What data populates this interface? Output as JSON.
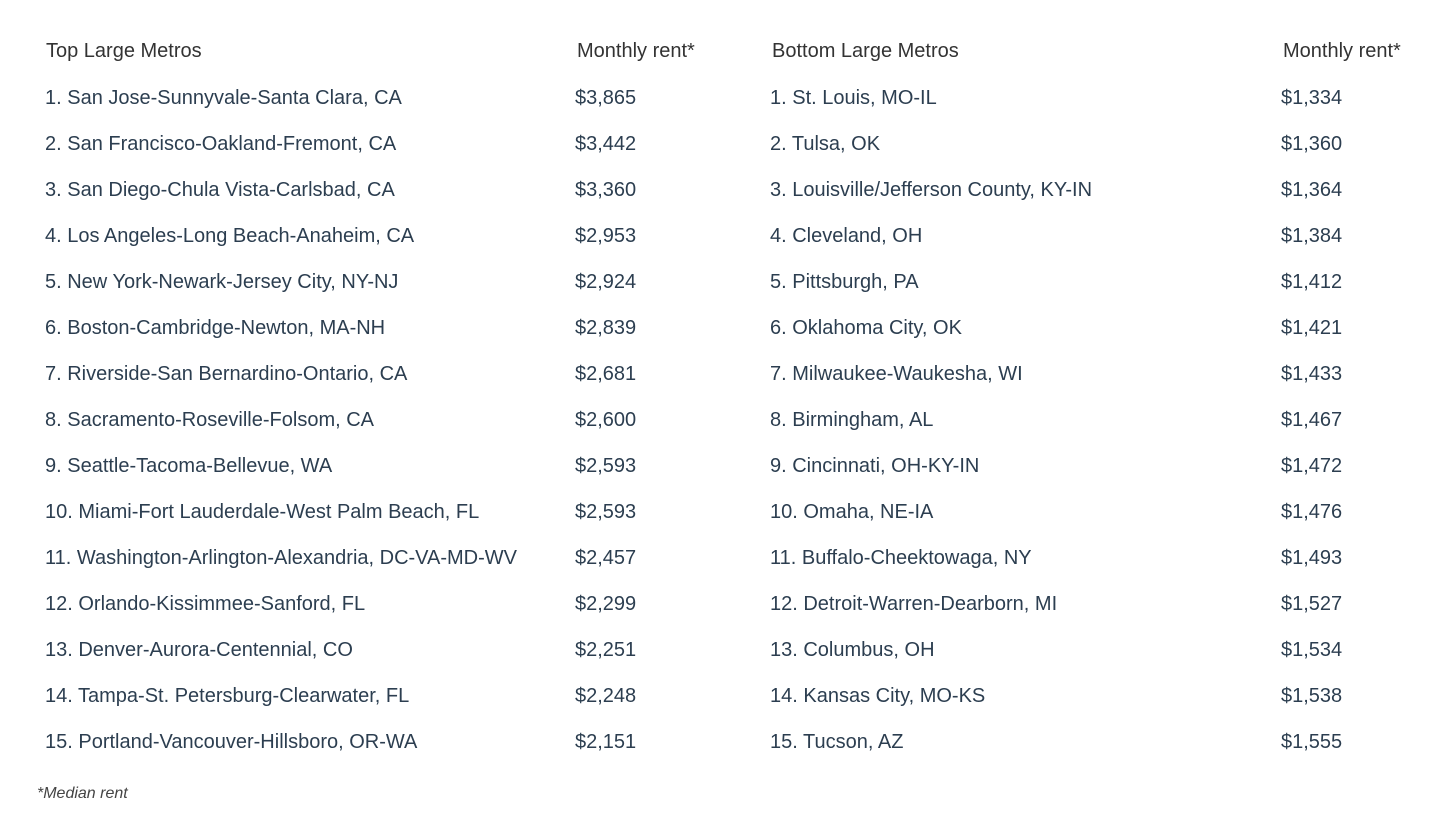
{
  "left": {
    "header_name": "Top Large Metros",
    "header_rent": "Monthly rent*",
    "rows": [
      [
        "1. San Jose-Sunnyvale-Santa Clara, CA",
        "$3,865"
      ],
      [
        "2. San Francisco-Oakland-Fremont, CA",
        "$3,442"
      ],
      [
        "3. San Diego-Chula Vista-Carlsbad, CA",
        "$3,360"
      ],
      [
        "4. Los Angeles-Long Beach-Anaheim, CA",
        "$2,953"
      ],
      [
        "5. New York-Newark-Jersey City, NY-NJ",
        "$2,924"
      ],
      [
        "6. Boston-Cambridge-Newton, MA-NH",
        "$2,839"
      ],
      [
        "7. Riverside-San Bernardino-Ontario, CA",
        "$2,681"
      ],
      [
        "8. Sacramento-Roseville-Folsom, CA",
        "$2,600"
      ],
      [
        "9. Seattle-Tacoma-Bellevue, WA",
        "$2,593"
      ],
      [
        "10. Miami-Fort Lauderdale-West Palm Beach, FL",
        "$2,593"
      ],
      [
        "11. Washington-Arlington-Alexandria, DC-VA-MD-WV",
        "$2,457"
      ],
      [
        "12. Orlando-Kissimmee-Sanford, FL",
        "$2,299"
      ],
      [
        "13. Denver-Aurora-Centennial, CO",
        "$2,251"
      ],
      [
        "14. Tampa-St. Petersburg-Clearwater, FL",
        "$2,248"
      ],
      [
        "15. Portland-Vancouver-Hillsboro, OR-WA",
        "$2,151"
      ]
    ]
  },
  "right": {
    "header_name": "Bottom Large Metros",
    "header_rent": "Monthly rent*",
    "rows": [
      [
        "1. St. Louis, MO-IL",
        "$1,334"
      ],
      [
        "2. Tulsa, OK",
        "$1,360"
      ],
      [
        "3. Louisville/Jefferson County, KY-IN",
        "$1,364"
      ],
      [
        "4. Cleveland, OH",
        "$1,384"
      ],
      [
        "5. Pittsburgh, PA",
        "$1,412"
      ],
      [
        "6. Oklahoma City, OK",
        "$1,421"
      ],
      [
        "7. Milwaukee-Waukesha, WI",
        "$1,433"
      ],
      [
        "8. Birmingham, AL",
        "$1,467"
      ],
      [
        "9. Cincinnati, OH-KY-IN",
        "$1,472"
      ],
      [
        "10. Omaha, NE-IA",
        "$1,476"
      ],
      [
        "11. Buffalo-Cheektowaga, NY",
        "$1,493"
      ],
      [
        "12. Detroit-Warren-Dearborn, MI",
        "$1,527"
      ],
      [
        "13. Columbus, OH",
        "$1,534"
      ],
      [
        "14. Kansas City, MO-KS",
        "$1,538"
      ],
      [
        "15. Tucson, AZ",
        "$1,555"
      ]
    ]
  },
  "footnote": "*Median rent"
}
